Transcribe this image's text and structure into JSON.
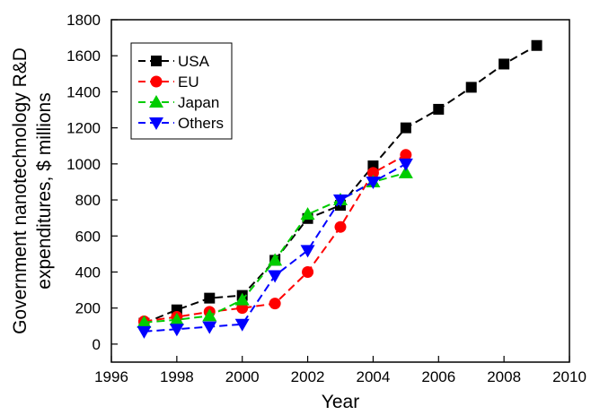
{
  "chart_data": {
    "type": "line",
    "xlabel": "Year",
    "ylabel_lines": [
      "Government nanotechnology R&D",
      "expenditures,  $ millions"
    ],
    "xlim": [
      1996,
      2010
    ],
    "ylim": [
      -100,
      1800
    ],
    "xticks": [
      1996,
      1998,
      2000,
      2002,
      2004,
      2006,
      2008,
      2010
    ],
    "yticks": [
      0,
      200,
      400,
      600,
      800,
      1000,
      1200,
      1400,
      1600,
      1800
    ],
    "grid": false,
    "legend_position": "top-left",
    "series": [
      {
        "name": "USA",
        "color": "#000000",
        "marker": "square",
        "points": [
          [
            1997,
            116
          ],
          [
            1998,
            190
          ],
          [
            1999,
            255
          ],
          [
            2000,
            270
          ],
          [
            2001,
            465
          ],
          [
            2002,
            697
          ],
          [
            2003,
            770
          ],
          [
            2004,
            989
          ],
          [
            2005,
            1200
          ],
          [
            2006,
            1303
          ],
          [
            2007,
            1425
          ],
          [
            2008,
            1554
          ],
          [
            2009,
            1657
          ]
        ]
      },
      {
        "name": "EU",
        "color": "#ff0000",
        "marker": "circle",
        "points": [
          [
            1997,
            126
          ],
          [
            1998,
            151
          ],
          [
            1999,
            179
          ],
          [
            2000,
            200
          ],
          [
            2001,
            225
          ],
          [
            2002,
            400
          ],
          [
            2003,
            650
          ],
          [
            2004,
            950
          ],
          [
            2005,
            1050
          ]
        ]
      },
      {
        "name": "Japan",
        "color": "#00cc00",
        "marker": "triangle-up",
        "points": [
          [
            1997,
            120
          ],
          [
            1998,
            135
          ],
          [
            1999,
            157
          ],
          [
            2000,
            245
          ],
          [
            2001,
            465
          ],
          [
            2002,
            720
          ],
          [
            2003,
            800
          ],
          [
            2004,
            900
          ],
          [
            2005,
            950
          ]
        ]
      },
      {
        "name": "Others",
        "color": "#0000ff",
        "marker": "triangle-down",
        "points": [
          [
            1997,
            70
          ],
          [
            1998,
            83
          ],
          [
            1999,
            96
          ],
          [
            2000,
            110
          ],
          [
            2001,
            380
          ],
          [
            2002,
            520
          ],
          [
            2003,
            800
          ],
          [
            2004,
            900
          ],
          [
            2005,
            1000
          ]
        ]
      }
    ]
  }
}
